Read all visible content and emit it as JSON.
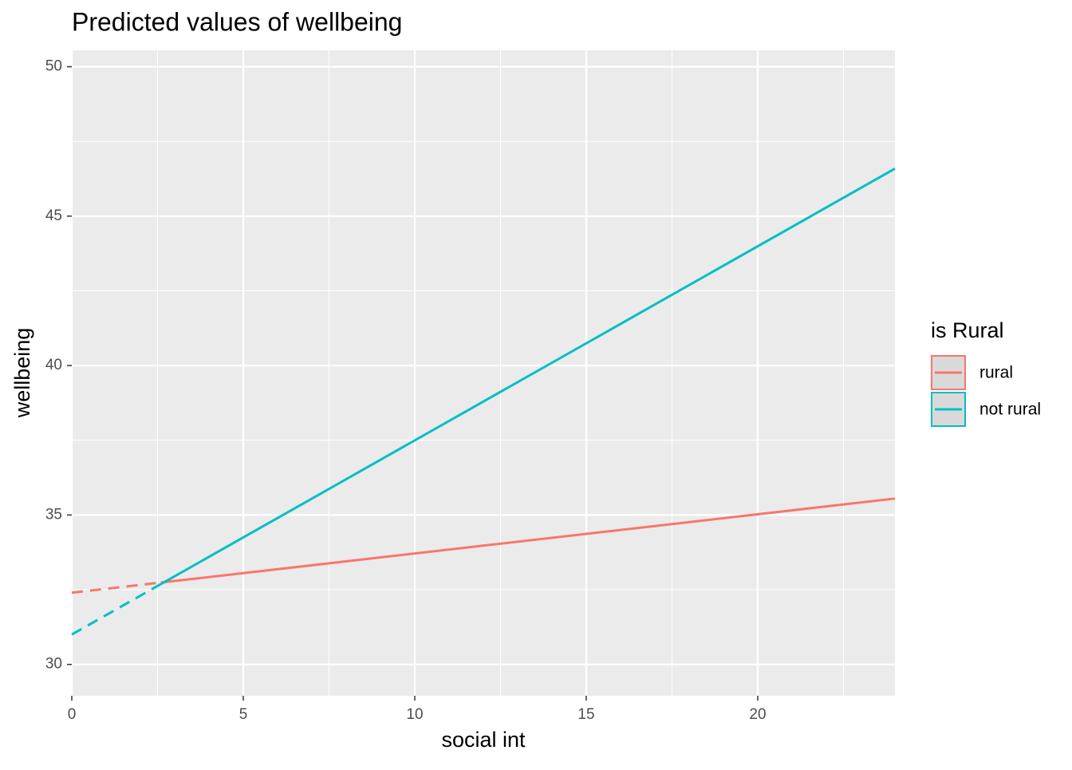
{
  "chart_data": {
    "type": "line",
    "title": "Predicted values of wellbeing",
    "x_label": "social int",
    "y_label": "wellbeing",
    "legend_title": "is Rural",
    "legend_position": "right",
    "xlim": [
      0,
      24
    ],
    "ylim": [
      28.95,
      50.55
    ],
    "xticks": [
      0,
      5,
      10,
      15,
      20
    ],
    "yticks": [
      30,
      35,
      40,
      45,
      50
    ],
    "xminor": [
      2.5,
      7.5,
      12.5,
      17.5,
      22.5
    ],
    "yminor": [
      32.5,
      37.5,
      42.5,
      47.5
    ],
    "grid": true,
    "series": [
      {
        "name": "rural",
        "color": "#F8766D",
        "x": [
          0,
          2.6,
          24
        ],
        "values": [
          32.4,
          32.74,
          35.55
        ],
        "segment_styles": [
          "dashed",
          "solid"
        ]
      },
      {
        "name": "not rural",
        "color": "#00BFC4",
        "x": [
          0,
          2.6,
          24
        ],
        "values": [
          31.0,
          32.69,
          46.59
        ],
        "segment_styles": [
          "dashed",
          "solid"
        ]
      }
    ]
  }
}
